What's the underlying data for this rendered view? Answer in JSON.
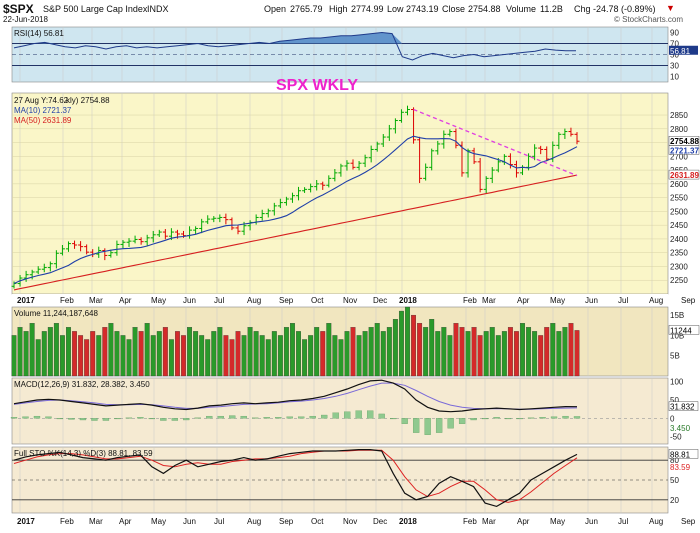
{
  "header": {
    "symbol": "$SPX",
    "name": "S&P 500 Large Cap Index",
    "exchange": "INDX",
    "date": "22-Jun-2018",
    "open_label": "Open",
    "open": "2765.79",
    "high_label": "High",
    "high": "2774.99",
    "low_label": "Low",
    "low": "2743.19",
    "close_label": "Close",
    "close": "2754.88",
    "volume_label": "Volume",
    "volume": "11.2B",
    "chg_label": "Chg",
    "chg": "-24.78 (-0.89%)",
    "watermark": "© StockCharts.com"
  },
  "colors": {
    "up": "#00aa00",
    "down": "#dd0000",
    "ma10": "#1f3fa8",
    "ma50": "#d62020",
    "trend": "#e040e0",
    "annotation": "#ee22cc"
  },
  "chart_data": [
    {
      "type": "line",
      "title": "RSI(14) 56.81",
      "series": [
        {
          "name": "RSI(14)",
          "values": [
            62,
            66,
            70,
            72,
            68,
            64,
            62,
            66,
            64,
            60,
            64,
            66,
            62,
            64,
            62,
            64,
            66,
            68,
            70,
            66,
            64,
            66,
            68,
            70,
            72,
            70,
            74,
            76,
            78,
            80,
            80,
            82,
            84,
            84,
            86,
            88,
            90,
            88,
            46,
            40,
            48,
            52,
            48,
            44,
            48,
            50,
            46,
            48,
            50,
            52,
            54,
            56,
            60,
            58,
            57,
            56.81
          ]
        }
      ],
      "ylim": [
        0,
        100
      ],
      "yticks": [
        10,
        30,
        50,
        70,
        90
      ],
      "reference_lines": [
        30,
        70
      ],
      "current_label": "56.81"
    },
    {
      "type": "candlestick",
      "annotation": "SPX WKLY",
      "legend": [
        "27 Aug Y:74.62",
        "kly) 2754.88",
        "MA(10) 2721.37",
        "MA(50) 2631.89"
      ],
      "ylim": [
        2200,
        2930
      ],
      "yticks": [
        2250,
        2300,
        2350,
        2400,
        2450,
        2500,
        2550,
        2600,
        2650,
        2700,
        2750,
        2800,
        2850
      ],
      "x_labels": [
        "2017",
        "Feb",
        "Mar",
        "Apr",
        "May",
        "Jun",
        "Jul",
        "Aug",
        "Sep",
        "Oct",
        "Nov",
        "Dec",
        "2018",
        "Feb",
        "Mar",
        "Apr",
        "May",
        "Jun",
        "Jul",
        "Aug",
        "Sep"
      ],
      "close": [
        2238,
        2258,
        2270,
        2280,
        2290,
        2296,
        2310,
        2348,
        2364,
        2383,
        2378,
        2372,
        2352,
        2345,
        2358,
        2340,
        2350,
        2380,
        2388,
        2392,
        2398,
        2390,
        2404,
        2415,
        2425,
        2410,
        2425,
        2418,
        2412,
        2432,
        2438,
        2462,
        2472,
        2475,
        2478,
        2470,
        2440,
        2428,
        2448,
        2460,
        2478,
        2492,
        2502,
        2520,
        2532,
        2545,
        2557,
        2575,
        2580,
        2590,
        2600,
        2595,
        2620,
        2640,
        2665,
        2675,
        2660,
        2675,
        2695,
        2725,
        2745,
        2770,
        2800,
        2830,
        2860,
        2870,
        2760,
        2620,
        2660,
        2720,
        2745,
        2780,
        2790,
        2740,
        2640,
        2720,
        2680,
        2580,
        2620,
        2650,
        2680,
        2700,
        2670,
        2640,
        2660,
        2700,
        2730,
        2725,
        2690,
        2740,
        2780,
        2790,
        2780,
        2754.88
      ],
      "ma10_label": "2721.37",
      "ma50_label": "2631.89",
      "last_close_label": "2754.88",
      "trendline": [
        [
          66,
          2870
        ],
        [
          93,
          2630
        ]
      ]
    },
    {
      "type": "bar",
      "title": "Volume 11,244,187,648",
      "yticks_labels": [
        "15B",
        "10B",
        "5B"
      ],
      "ylim": [
        0,
        17
      ],
      "current_label": "11244",
      "values": [
        10,
        12,
        11,
        13,
        9,
        11,
        12,
        13,
        10,
        12,
        11,
        10,
        9,
        11,
        10,
        12,
        13,
        11,
        10,
        9,
        12,
        11,
        13,
        10,
        11,
        12,
        9,
        11,
        10,
        12,
        11,
        10,
        9,
        11,
        12,
        10,
        9,
        11,
        10,
        12,
        11,
        10,
        9,
        11,
        10,
        12,
        13,
        11,
        9,
        10,
        12,
        11,
        13,
        10,
        9,
        11,
        12,
        10,
        11,
        12,
        13,
        11,
        12,
        14,
        16,
        17,
        15,
        13,
        12,
        14,
        11,
        12,
        10,
        13,
        12,
        11,
        12,
        10,
        11,
        12,
        10,
        11,
        12,
        11,
        13,
        12,
        11,
        10,
        12,
        13,
        11,
        12,
        13,
        11.24
      ]
    },
    {
      "type": "line",
      "title": "MACD(12,26,9) 31.832, 28.382, 3.450",
      "series": [
        {
          "name": "MACD(12,26,9)",
          "values": [
            40,
            45,
            50,
            52,
            50,
            46,
            42,
            38,
            34,
            36,
            38,
            40,
            36,
            30,
            26,
            24,
            28,
            34,
            36,
            40,
            42,
            40,
            42,
            44,
            48,
            50,
            54,
            60,
            70,
            80,
            92,
            102,
            104,
            96,
            80,
            50,
            30,
            20,
            18,
            20,
            24,
            26,
            28,
            26,
            24,
            26,
            28,
            30,
            32,
            31.832
          ]
        },
        {
          "name": "signal",
          "values": [
            38,
            42,
            46,
            49,
            50,
            48,
            45,
            42,
            38,
            37,
            37,
            38,
            37,
            34,
            30,
            27,
            27,
            30,
            32,
            35,
            38,
            39,
            40,
            42,
            45,
            47,
            50,
            54,
            60,
            68,
            78,
            88,
            96,
            96,
            90,
            76,
            60,
            46,
            36,
            30,
            27,
            26,
            26,
            26,
            25,
            25,
            26,
            27,
            28,
            28.382
          ]
        }
      ],
      "histogram": [
        2,
        3,
        4,
        3,
        0,
        -2,
        -3,
        -4,
        -4,
        -1,
        1,
        2,
        -1,
        -4,
        -4,
        -3,
        1,
        4,
        4,
        5,
        4,
        1,
        2,
        2,
        3,
        3,
        4,
        6,
        10,
        12,
        14,
        14,
        8,
        0,
        -10,
        -26,
        -30,
        -26,
        -18,
        -10,
        -3,
        0,
        2,
        0,
        -1,
        1,
        2,
        3,
        4,
        3.45
      ],
      "ylim": [
        -70,
        110
      ],
      "yticks": [
        100,
        50,
        0,
        -50
      ],
      "current_label_1": "31.832",
      "current_label_2": "3.450"
    },
    {
      "type": "line",
      "title": "Full STO %K(14,3) %D(3) 88.81, 83.59",
      "series": [
        {
          "name": "%K(14,3)",
          "values": [
            80,
            85,
            88,
            90,
            92,
            88,
            84,
            82,
            80,
            84,
            86,
            88,
            70,
            60,
            72,
            80,
            70,
            74,
            78,
            80,
            84,
            80,
            82,
            86,
            90,
            92,
            94,
            94,
            94,
            95,
            96,
            96,
            94,
            60,
            30,
            20,
            25,
            45,
            55,
            48,
            40,
            15,
            10,
            20,
            30,
            50,
            60,
            70,
            80,
            88.81
          ]
        },
        {
          "name": "%D(3)",
          "values": [
            75,
            80,
            85,
            88,
            90,
            90,
            88,
            85,
            82,
            82,
            84,
            86,
            80,
            72,
            70,
            74,
            76,
            74,
            74,
            78,
            80,
            82,
            82,
            84,
            86,
            90,
            92,
            94,
            94,
            94,
            95,
            95,
            95,
            80,
            55,
            35,
            25,
            30,
            40,
            48,
            48,
            35,
            20,
            16,
            20,
            32,
            46,
            60,
            72,
            83.59
          ]
        }
      ],
      "ylim": [
        0,
        100
      ],
      "yticks": [
        20,
        50,
        80
      ],
      "current_label_1": "88.81",
      "current_label_2": "83.59"
    }
  ]
}
